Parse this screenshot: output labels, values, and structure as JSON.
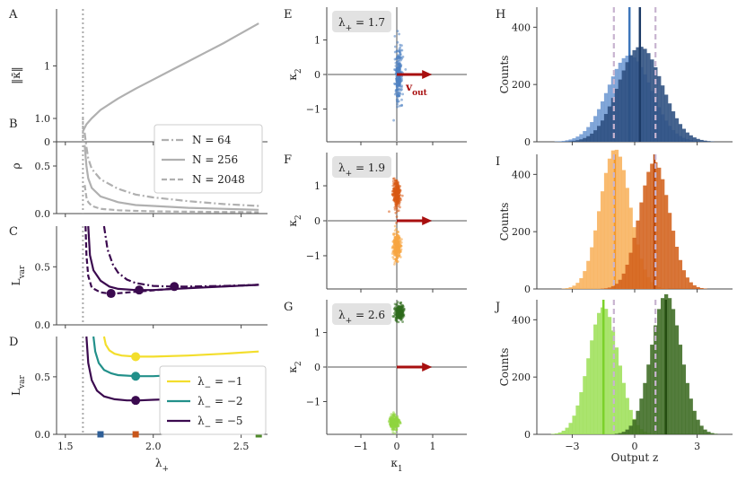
{
  "chart_data": [
    {
      "panel": "A",
      "type": "line",
      "ylabel": "‖κ̄‖",
      "xlabel": "",
      "xlim": [
        1.45,
        2.65
      ],
      "ylim": [
        0,
        1.75
      ],
      "yticks": [
        {
          "v": 0,
          "t": "0"
        },
        {
          "v": 1,
          "t": "1"
        }
      ],
      "xticks": [
        1.5,
        2.0,
        2.5
      ],
      "vline": 1.6,
      "series": [
        {
          "color": "#b0b0b0",
          "style": "solid",
          "x": [
            1.6,
            1.62,
            1.65,
            1.7,
            1.8,
            1.9,
            2.0,
            2.1,
            2.2,
            2.3,
            2.4,
            2.5,
            2.6
          ],
          "y": [
            0.14,
            0.23,
            0.31,
            0.42,
            0.57,
            0.7,
            0.82,
            0.94,
            1.06,
            1.18,
            1.3,
            1.43,
            1.56
          ]
        }
      ]
    },
    {
      "panel": "B",
      "type": "line",
      "ylabel": "ρ",
      "xlabel": "",
      "xlim": [
        1.45,
        2.65
      ],
      "ylim": [
        0,
        1.0
      ],
      "yticks": [
        {
          "v": 0,
          "t": "0.0"
        },
        {
          "v": 0.5,
          "t": "0.5"
        },
        {
          "v": 1,
          "t": "1.0"
        }
      ],
      "xticks": [
        1.5,
        2.0,
        2.5
      ],
      "vline": 1.6,
      "legend": [
        {
          "label": "N = 64",
          "style": "dashdot"
        },
        {
          "label": "N = 256",
          "style": "solid"
        },
        {
          "label": "N = 2048",
          "style": "dashed"
        }
      ],
      "series": [
        {
          "name": "N = 64",
          "color": "#b0b0b0",
          "style": "dashdot",
          "x": [
            1.61,
            1.62,
            1.63,
            1.65,
            1.7,
            1.8,
            1.9,
            2.0,
            2.2,
            2.4,
            2.6
          ],
          "y": [
            0.85,
            0.7,
            0.58,
            0.47,
            0.36,
            0.26,
            0.2,
            0.17,
            0.13,
            0.1,
            0.08
          ]
        },
        {
          "name": "N = 256",
          "color": "#b0b0b0",
          "style": "solid",
          "x": [
            1.61,
            1.62,
            1.63,
            1.65,
            1.7,
            1.8,
            1.9,
            2.0,
            2.2,
            2.4,
            2.6
          ],
          "y": [
            0.72,
            0.5,
            0.37,
            0.27,
            0.18,
            0.12,
            0.09,
            0.08,
            0.06,
            0.05,
            0.04
          ]
        },
        {
          "name": "N = 2048",
          "color": "#b0b0b0",
          "style": "dashed",
          "x": [
            1.61,
            1.62,
            1.63,
            1.65,
            1.7,
            1.8,
            1.9,
            2.0,
            2.2,
            2.4,
            2.6
          ],
          "y": [
            0.3,
            0.17,
            0.12,
            0.08,
            0.05,
            0.035,
            0.028,
            0.024,
            0.02,
            0.017,
            0.015
          ]
        }
      ]
    },
    {
      "panel": "C",
      "type": "line",
      "ylabel": "L_var",
      "xlabel": "",
      "xlim": [
        1.45,
        2.65
      ],
      "ylim": [
        0,
        0.85
      ],
      "yticks": [
        {
          "v": 0,
          "t": "0.0"
        },
        {
          "v": 0.5,
          "t": "0.5"
        }
      ],
      "xticks": [
        1.5,
        2.0,
        2.5
      ],
      "vline": 1.6,
      "series": [
        {
          "color": "#3b0a4f",
          "style": "dashdot",
          "x": [
            1.72,
            1.74,
            1.77,
            1.8,
            1.85,
            1.9,
            2.0,
            2.1,
            2.2,
            2.4,
            2.6
          ],
          "y": [
            0.85,
            0.65,
            0.52,
            0.45,
            0.39,
            0.36,
            0.335,
            0.33,
            0.33,
            0.335,
            0.345
          ]
        },
        {
          "color": "#3b0a4f",
          "style": "solid",
          "x": [
            1.63,
            1.64,
            1.66,
            1.7,
            1.75,
            1.8,
            1.9,
            2.0,
            2.2,
            2.4,
            2.6
          ],
          "y": [
            0.85,
            0.6,
            0.47,
            0.38,
            0.33,
            0.31,
            0.3,
            0.3,
            0.315,
            0.33,
            0.345
          ]
        },
        {
          "color": "#3b0a4f",
          "style": "dashed",
          "x": [
            1.615,
            1.62,
            1.63,
            1.65,
            1.7,
            1.75,
            1.8,
            1.9,
            2.1,
            2.3,
            2.6
          ],
          "y": [
            0.85,
            0.6,
            0.42,
            0.32,
            0.28,
            0.27,
            0.272,
            0.285,
            0.31,
            0.325,
            0.345
          ]
        }
      ],
      "points": [
        {
          "x": 2.12,
          "y": 0.33,
          "color": "#3b0a4f"
        },
        {
          "x": 1.92,
          "y": 0.3,
          "color": "#3b0a4f"
        },
        {
          "x": 1.76,
          "y": 0.27,
          "color": "#3b0a4f"
        }
      ]
    },
    {
      "panel": "D",
      "type": "line",
      "ylabel": "L_var",
      "xlabel": "λ+",
      "xlim": [
        1.45,
        2.65
      ],
      "ylim": [
        0,
        0.85
      ],
      "yticks": [
        {
          "v": 0,
          "t": "0.0"
        },
        {
          "v": 0.5,
          "t": "0.5"
        }
      ],
      "xticks": [
        1.5,
        2.0,
        2.5
      ],
      "xticklabels": [
        "1.5",
        "2.0",
        "2.5"
      ],
      "vline": 1.6,
      "legend": [
        {
          "label": "λ− = −1",
          "color": "#f3de2c"
        },
        {
          "label": "λ− = −2",
          "color": "#22908a"
        },
        {
          "label": "λ− = −5",
          "color": "#3b0a4f"
        }
      ],
      "series": [
        {
          "name": "λ− = −1",
          "color": "#f3de2c",
          "style": "solid",
          "x": [
            1.72,
            1.73,
            1.75,
            1.78,
            1.82,
            1.9,
            2.0,
            2.2,
            2.4,
            2.6
          ],
          "y": [
            0.85,
            0.78,
            0.73,
            0.7,
            0.685,
            0.675,
            0.675,
            0.685,
            0.7,
            0.72
          ]
        },
        {
          "name": "λ− = −2",
          "color": "#22908a",
          "style": "solid",
          "x": [
            1.66,
            1.67,
            1.69,
            1.72,
            1.76,
            1.8,
            1.9,
            2.0,
            2.2,
            2.4,
            2.6
          ],
          "y": [
            0.85,
            0.72,
            0.62,
            0.56,
            0.53,
            0.515,
            0.505,
            0.505,
            0.52,
            0.54,
            0.57
          ]
        },
        {
          "name": "λ− = −5",
          "color": "#3b0a4f",
          "style": "solid",
          "x": [
            1.62,
            1.63,
            1.65,
            1.68,
            1.72,
            1.78,
            1.85,
            1.92,
            2.0,
            2.2,
            2.4,
            2.6
          ],
          "y": [
            0.85,
            0.62,
            0.47,
            0.38,
            0.33,
            0.305,
            0.295,
            0.295,
            0.3,
            0.31,
            0.33,
            0.35
          ]
        }
      ],
      "points": [
        {
          "x": 1.9,
          "y": 0.675,
          "color": "#f3de2c"
        },
        {
          "x": 1.9,
          "y": 0.505,
          "color": "#22908a"
        },
        {
          "x": 1.9,
          "y": 0.295,
          "color": "#3b0a4f"
        }
      ],
      "markers": [
        {
          "x": 1.7,
          "color": "#2f5f97"
        },
        {
          "x": 1.9,
          "color": "#c9561a"
        },
        {
          "x": 2.6,
          "color": "#4e8a2a"
        }
      ]
    }
  ],
  "scatter_panels": [
    {
      "panel": "E",
      "label": "λ+ = 1.7",
      "ylabel": "κ2",
      "xlabel": "",
      "arrow_label": "vout",
      "clusters": [
        {
          "cx": 0.05,
          "cy": 0.0,
          "sx": 0.05,
          "sy": 0.38,
          "color": "#4f82c3"
        }
      ]
    },
    {
      "panel": "F",
      "label": "λ+ = 1.9",
      "ylabel": "κ2",
      "xlabel": "",
      "clusters": [
        {
          "cx": 0.0,
          "cy": 0.75,
          "sx": 0.05,
          "sy": 0.2,
          "color": "#d85a14"
        },
        {
          "cx": 0.0,
          "cy": -0.72,
          "sx": 0.05,
          "sy": 0.2,
          "color": "#f7a542"
        }
      ]
    },
    {
      "panel": "G",
      "label": "λ+ = 2.6",
      "ylabel": "κ2",
      "xlabel": "κ1",
      "clusters": [
        {
          "cx": 0.07,
          "cy": 1.58,
          "sx": 0.06,
          "sy": 0.1,
          "color": "#2f6b1d"
        },
        {
          "cx": -0.07,
          "cy": -1.6,
          "sx": 0.06,
          "sy": 0.1,
          "color": "#8fd63f"
        }
      ]
    }
  ],
  "hist_panels": [
    {
      "panel": "H",
      "ylabel": "Counts",
      "xlabel": "",
      "dashed": [
        -1,
        1
      ],
      "dists": [
        {
          "mu": -0.25,
          "sd": 1.05,
          "color": "#6f9ad3",
          "line": "#3d76bb"
        },
        {
          "mu": 0.25,
          "sd": 1.05,
          "color": "#2c4f7f",
          "line": "#1b3a66"
        }
      ]
    },
    {
      "panel": "I",
      "ylabel": "Counts",
      "xlabel": "",
      "dashed": [
        -1,
        1
      ],
      "dists": [
        {
          "mu": -0.95,
          "sd": 0.72,
          "color": "#f8b25c",
          "line": "#f19a30"
        },
        {
          "mu": 0.95,
          "sd": 0.72,
          "color": "#d3621d",
          "line": "#b9480c"
        }
      ]
    },
    {
      "panel": "J",
      "ylabel": "Counts",
      "xlabel": "Output z",
      "dashed": [
        -1,
        1
      ],
      "dists": [
        {
          "mu": -1.5,
          "sd": 0.72,
          "color": "#9ee05a",
          "line": "#7cd12b"
        },
        {
          "mu": 1.5,
          "sd": 0.72,
          "color": "#3c6b22",
          "line": "#254d12"
        }
      ]
    }
  ],
  "scatter_ticks": {
    "x": [
      {
        "v": -1,
        "t": "−1"
      },
      {
        "v": 0,
        "t": "0"
      },
      {
        "v": 1,
        "t": "1"
      }
    ],
    "y": [
      {
        "v": -1,
        "t": "−1"
      },
      {
        "v": 0,
        "t": "0"
      },
      {
        "v": 1,
        "t": "1"
      }
    ]
  },
  "hist_ticks": {
    "x": [
      {
        "v": -3,
        "t": "−3"
      },
      {
        "v": 0,
        "t": "0"
      },
      {
        "v": 3,
        "t": "3"
      }
    ],
    "y": [
      {
        "v": 0,
        "t": "0"
      },
      {
        "v": 200,
        "t": "200"
      },
      {
        "v": 400,
        "t": "400"
      }
    ]
  }
}
